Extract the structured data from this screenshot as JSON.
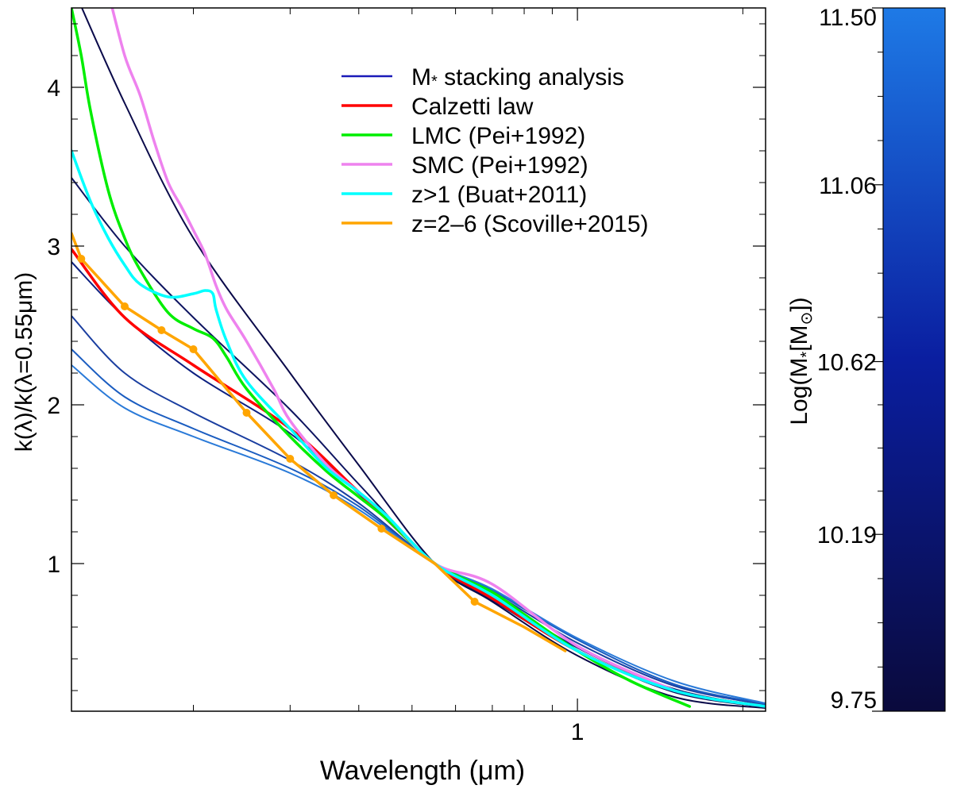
{
  "chart_data": [
    {
      "type": "line",
      "xlabel": "Wavelength (μm)",
      "ylabel": "k(λ)/k(λ=0.55μm)",
      "xscale": "log",
      "xlim": [
        0.12,
        2.2
      ],
      "ylim": [
        0.07,
        4.5
      ],
      "x_tick_labels": [
        {
          "value": 1,
          "label": "1"
        }
      ],
      "x_minor_ticks": [
        0.2,
        0.3,
        0.4,
        0.5,
        0.6,
        0.7,
        0.8,
        0.9,
        2
      ],
      "y_tick_labels": [
        {
          "value": 1,
          "label": "1"
        },
        {
          "value": 2,
          "label": "2"
        },
        {
          "value": 3,
          "label": "3"
        },
        {
          "value": 4,
          "label": "4"
        }
      ],
      "grid": false,
      "legend_position": "top-right",
      "legend": [
        {
          "label": "M",
          "sub": "*",
          "rest": " stacking analysis",
          "color": "#1a1ab8"
        },
        {
          "label": "Calzetti law",
          "sub": "",
          "rest": "",
          "color": "#ff0000"
        },
        {
          "label": "LMC (Pei+1992)",
          "sub": "",
          "rest": "",
          "color": "#00ee00"
        },
        {
          "label": "SMC (Pei+1992)",
          "sub": "",
          "rest": "",
          "color": "#ee82ee"
        },
        {
          "label": "z>1 (Buat+2011)",
          "sub": "",
          "rest": "",
          "color": "#00ffff"
        },
        {
          "label": "z=2–6 (Scoville+2015)",
          "sub": "",
          "rest": "",
          "color": "#ffa500"
        }
      ],
      "stacking_curves": [
        {
          "color": "#0a0a4a",
          "width": 2,
          "x": [
            0.12,
            0.15,
            0.2,
            0.3,
            0.4,
            0.55,
            0.7,
            1.0,
            1.5,
            2.2
          ],
          "y": [
            4.65,
            3.9,
            3.05,
            2.2,
            1.62,
            1.0,
            0.76,
            0.42,
            0.16,
            0.09
          ]
        },
        {
          "color": "#0d1460",
          "width": 2,
          "x": [
            0.12,
            0.15,
            0.2,
            0.3,
            0.4,
            0.55,
            0.7,
            1.0,
            1.5,
            2.2
          ],
          "y": [
            3.43,
            3.0,
            2.55,
            1.97,
            1.5,
            1.0,
            0.77,
            0.45,
            0.19,
            0.095
          ]
        },
        {
          "color": "#0d2080",
          "width": 2,
          "x": [
            0.12,
            0.15,
            0.2,
            0.3,
            0.4,
            0.55,
            0.7,
            1.0,
            1.5,
            2.2
          ],
          "y": [
            2.9,
            2.55,
            2.2,
            1.82,
            1.44,
            1.0,
            0.8,
            0.47,
            0.21,
            0.1
          ]
        },
        {
          "color": "#1a3ea0",
          "width": 2,
          "x": [
            0.12,
            0.15,
            0.2,
            0.3,
            0.4,
            0.55,
            0.7,
            1.0,
            1.5,
            2.2
          ],
          "y": [
            2.56,
            2.2,
            1.95,
            1.65,
            1.38,
            1.0,
            0.82,
            0.5,
            0.23,
            0.11
          ]
        },
        {
          "color": "#1a5cc0",
          "width": 2,
          "x": [
            0.12,
            0.15,
            0.2,
            0.3,
            0.4,
            0.55,
            0.7,
            1.0,
            1.5,
            2.2
          ],
          "y": [
            2.35,
            2.05,
            1.85,
            1.6,
            1.36,
            1.0,
            0.83,
            0.52,
            0.24,
            0.115
          ]
        },
        {
          "color": "#2a7ad8",
          "width": 2,
          "x": [
            0.12,
            0.15,
            0.2,
            0.3,
            0.4,
            0.55,
            0.7,
            1.0,
            1.5,
            2.2
          ],
          "y": [
            2.25,
            1.98,
            1.8,
            1.57,
            1.34,
            1.0,
            0.84,
            0.53,
            0.26,
            0.12
          ]
        }
      ],
      "series": [
        {
          "name": "Calzetti law",
          "color": "#ff0000",
          "width": 3.5,
          "markers": false,
          "x": [
            0.12,
            0.15,
            0.2,
            0.3,
            0.4,
            0.55,
            0.7,
            1.0,
            1.5,
            2.2
          ],
          "y": [
            2.98,
            2.55,
            2.25,
            1.85,
            1.45,
            1.0,
            0.78,
            0.45,
            0.2,
            0.1
          ]
        },
        {
          "name": "LMC (Pei+1992)",
          "color": "#00ee00",
          "width": 3.5,
          "markers": false,
          "x": [
            0.12,
            0.125,
            0.13,
            0.14,
            0.15,
            0.16,
            0.18,
            0.2,
            0.217,
            0.23,
            0.25,
            0.3,
            0.35,
            0.4,
            0.45,
            0.55,
            0.7,
            0.8,
            1.0,
            1.25,
            1.6
          ],
          "y": [
            4.5,
            4.2,
            3.85,
            3.35,
            3.05,
            2.85,
            2.58,
            2.48,
            2.42,
            2.3,
            2.1,
            1.8,
            1.58,
            1.42,
            1.28,
            1.0,
            0.82,
            0.68,
            0.45,
            0.26,
            0.1
          ]
        },
        {
          "name": "SMC (Pei+1992)",
          "color": "#ee82ee",
          "width": 3.5,
          "markers": false,
          "x": [
            0.14,
            0.15,
            0.16,
            0.17,
            0.18,
            0.19,
            0.2,
            0.21,
            0.22,
            0.23,
            0.25,
            0.28,
            0.3,
            0.35,
            0.4,
            0.45,
            0.55,
            0.7,
            1.0,
            1.5
          ],
          "y": [
            4.6,
            4.2,
            3.95,
            3.65,
            3.4,
            3.25,
            3.1,
            2.95,
            2.75,
            2.6,
            2.4,
            2.1,
            1.9,
            1.62,
            1.45,
            1.3,
            1.0,
            0.87,
            0.48,
            0.2
          ]
        },
        {
          "name": "z>1 (Buat+2011)",
          "color": "#00ffff",
          "width": 3.5,
          "markers": false,
          "x": [
            0.12,
            0.13,
            0.14,
            0.15,
            0.16,
            0.18,
            0.2,
            0.21,
            0.217,
            0.22,
            0.23,
            0.25,
            0.3,
            0.35,
            0.4,
            0.45,
            0.55,
            0.7,
            1.0,
            1.5,
            2.2
          ],
          "y": [
            3.6,
            3.28,
            3.05,
            2.88,
            2.76,
            2.68,
            2.7,
            2.72,
            2.7,
            2.6,
            2.4,
            2.15,
            1.85,
            1.6,
            1.45,
            1.3,
            1.0,
            0.8,
            0.45,
            0.2,
            0.1
          ]
        },
        {
          "name": "z=2–6 (Scoville+2015)",
          "color": "#ffa500",
          "width": 3.5,
          "markers": true,
          "x": [
            0.12,
            0.125,
            0.15,
            0.175,
            0.2,
            0.25,
            0.3,
            0.36,
            0.44,
            0.55,
            0.65,
            0.8,
            0.95
          ],
          "y": [
            3.08,
            2.92,
            2.62,
            2.47,
            2.35,
            1.95,
            1.66,
            1.43,
            1.22,
            1.0,
            0.76,
            0.6,
            0.45
          ],
          "marker_indices": [
            1,
            2,
            3,
            4,
            5,
            6,
            7,
            8,
            10
          ]
        }
      ]
    },
    {
      "type": "colorbar",
      "label": "Log(M",
      "label_sub": "*",
      "label_mid": "[M",
      "label_sub2": "⊙",
      "label_end": "])",
      "range": [
        9.75,
        11.5
      ],
      "ticks": [
        "11.50",
        "11.06",
        "10.62",
        "10.19",
        "9.75"
      ],
      "tick_values": [
        11.5,
        11.06,
        10.62,
        10.19,
        9.75
      ],
      "color_low": "#0a0a3c",
      "color_mid": "#0a1ea0",
      "color_high": "#1e7ae6"
    }
  ]
}
